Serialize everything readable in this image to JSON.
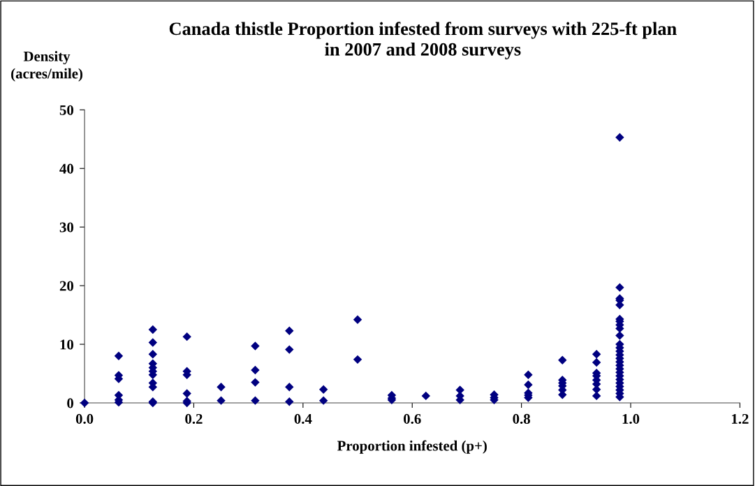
{
  "chart_data": {
    "type": "scatter",
    "title": "Canada thistle Proportion infested from surveys with 225-ft plan\nin 2007 and 2008 surveys",
    "xlabel": "Proportion infested (p+)",
    "ylabel": "Density\n(acres/mile)",
    "marker": "diamond",
    "grid": false,
    "xlim": [
      0,
      1.2
    ],
    "xticks": [
      {
        "value": 0,
        "label": "0.0"
      },
      0.2,
      0.4,
      0.6,
      0.8,
      {
        "value": 1,
        "label": "1.0"
      },
      1.2
    ],
    "ylim": [
      0,
      50
    ],
    "yticks": [
      0,
      10,
      20,
      30,
      40,
      50
    ],
    "series": [
      {
        "color": "#000080",
        "x": [
          0,
          0.0625,
          0.0625,
          0.0625,
          0.0625,
          0.0625,
          0.0625,
          0.125,
          0.125,
          0.125,
          0.125,
          0.125,
          0.125,
          0.125,
          0.125,
          0.125,
          0.125,
          0.125,
          0.1875,
          0.1875,
          0.1875,
          0.1875,
          0.1875,
          0.1875,
          0.25,
          0.25,
          0.3125,
          0.3125,
          0.3125,
          0.3125,
          0.375,
          0.375,
          0.375,
          0.375,
          0.4375,
          0.4375,
          0.5,
          0.5,
          0.5625,
          0.5625,
          0.5625,
          0.625,
          0.6875,
          0.6875,
          0.6875,
          0.75,
          0.75,
          0.75,
          0.8125,
          0.8125,
          0.8125,
          0.8125,
          0.8125,
          0.875,
          0.875,
          0.875,
          0.875,
          0.875,
          0.875,
          0.9375,
          0.9375,
          0.9375,
          0.9375,
          0.9375,
          0.9375,
          0.9375,
          0.9375,
          0.98,
          0.98,
          0.98,
          0.98,
          0.98,
          0.98,
          0.98,
          0.98,
          0.98,
          0.98,
          0.98,
          0.98,
          0.98,
          0.98,
          0.98,
          0.98,
          0.98,
          0.98,
          0.98,
          0.98,
          0.98,
          0.98,
          0.98,
          0.98,
          0.98,
          0.98
        ],
        "values": [
          0,
          8.0,
          4.7,
          4.1,
          1.3,
          0.5,
          0.1,
          12.5,
          10.3,
          8.3,
          6.7,
          6.0,
          5.4,
          4.8,
          3.4,
          2.7,
          0.2,
          0,
          11.3,
          5.4,
          4.8,
          1.6,
          0.3,
          0,
          2.7,
          0.4,
          9.7,
          5.6,
          3.5,
          0.4,
          12.3,
          9.1,
          2.7,
          0.2,
          2.3,
          0.4,
          14.2,
          7.4,
          1.3,
          0.8,
          0.5,
          1.2,
          2.2,
          1.2,
          0.5,
          1.4,
          0.9,
          0.5,
          4.8,
          3.1,
          1.7,
          1.3,
          0.9,
          7.3,
          3.9,
          3.4,
          2.9,
          2.2,
          1.4,
          8.3,
          6.9,
          5.1,
          4.6,
          3.9,
          3.2,
          2.3,
          1.2,
          45.3,
          19.7,
          17.8,
          17.5,
          16.7,
          14.3,
          13.9,
          13.3,
          12.7,
          11.5,
          10.0,
          9.4,
          8.8,
          8.2,
          7.6,
          7.0,
          6.4,
          5.8,
          5.2,
          4.6,
          4.0,
          3.4,
          2.8,
          2.2,
          1.6,
          1.0
        ]
      }
    ]
  }
}
